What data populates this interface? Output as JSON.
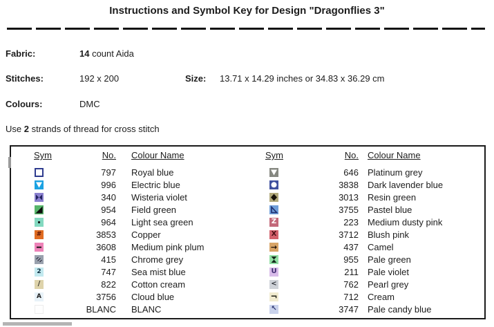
{
  "title": "Instructions and Symbol Key for Design \"Dragonflies 3\"",
  "info": {
    "fabric_label": "Fabric:",
    "fabric_count": "14",
    "fabric_rest": " count Aida",
    "stitches_label": "Stitches:",
    "stitches_value": "192 x 200",
    "size_label": "Size:",
    "size_value": "13.71 x 14.29 inches or 34.83 x 36.29 cm",
    "colours_label": "Colours:",
    "colours_value": "DMC",
    "strands_prefix": "Use ",
    "strands_count": "2",
    "strands_suffix": " strands of thread for cross stitch"
  },
  "key_table": {
    "headers": {
      "sym": "Sym",
      "no": "No.",
      "name": "Colour Name"
    },
    "left_rows": [
      {
        "icon": "bordered-square-icon",
        "bg": "#ffffff",
        "border": "2.5px solid #2e3b8e",
        "no": "797",
        "name": "Royal blue"
      },
      {
        "icon": "down-triangle-icon",
        "bg": "#1ba2e2",
        "shape": "triangle-down",
        "shape_color": "#ffffff",
        "no": "996",
        "name": "Electric blue"
      },
      {
        "icon": "bowtie-icon",
        "bg": "#8a80cf",
        "shape": "bowtie",
        "shape_color": "#23235f",
        "no": "340",
        "name": "Wisteria violet"
      },
      {
        "icon": "lower-right-triangle-icon",
        "bg": "#57b56a",
        "shape": "tri-lower-right",
        "shape_color": "#0d0d0d",
        "no": "954",
        "name": "Field green"
      },
      {
        "icon": "dot-icon",
        "bg": "#83d9c0",
        "shape": "dot",
        "shape_color": "#111111",
        "no": "964",
        "name": "Light sea green"
      },
      {
        "icon": "hash-icon",
        "bg": "#e06c22",
        "glyph": "#",
        "glyph_color": "#5a1508",
        "glyph_size": "9px",
        "no": "3853",
        "name": "Copper"
      },
      {
        "icon": "dash-icon",
        "bg": "#ee82b8",
        "shape": "dash",
        "shape_color": "#111111",
        "no": "3608",
        "name": "Medium pink plum"
      },
      {
        "icon": "diagonal-hatch-icon",
        "bg": "#99a1ad",
        "shape": "hatch",
        "shape_color": "#2e2e3e",
        "no": "415",
        "name": "Chrome grey"
      },
      {
        "icon": "digit-two-icon",
        "bg": "#c2e9ef",
        "glyph": "2",
        "glyph_color": "#0c2c3c",
        "glyph_size": "9px",
        "no": "747",
        "name": "Sea mist blue"
      },
      {
        "icon": "slash-icon",
        "bg": "#ded3ab",
        "glyph": "/",
        "glyph_color": "#3a3a30",
        "glyph_size": "10px",
        "no": "822",
        "name": "Cotton cream"
      },
      {
        "icon": "letter-a-icon",
        "bg": "#e8f2f8",
        "glyph": "A",
        "glyph_color": "#222222",
        "glyph_size": "9px",
        "no": "3756",
        "name": "Cloud blue"
      },
      {
        "icon": "blank-square-icon",
        "bg": "#fefefe",
        "border": "1px solid #ececec",
        "no": "BLANC",
        "name": "BLANC"
      }
    ],
    "right_rows": [
      {
        "icon": "down-triangle-icon",
        "bg": "#868881",
        "shape": "triangle-down",
        "shape_color": "#ffffff",
        "no": "646",
        "name": "Platinum grey"
      },
      {
        "icon": "circle-icon",
        "bg": "#40519f",
        "shape": "circle",
        "shape_color": "#ffffff",
        "no": "3838",
        "name": "Dark lavender blue"
      },
      {
        "icon": "diamond-icon",
        "bg": "#b1a97b",
        "shape": "diamond",
        "shape_color": "#17120a",
        "no": "3013",
        "name": "Resin green"
      },
      {
        "icon": "outline-triangle-icon",
        "bg": "#6f9ed9",
        "shape": "tri-outline",
        "shape_color": "#1c2c6e",
        "no": "3755",
        "name": "Pastel blue"
      },
      {
        "icon": "letter-z-icon",
        "bg": "#c3697a",
        "glyph": "Z",
        "glyph_color": "#ffffff",
        "glyph_size": "10px",
        "no": "223",
        "name": "Medium dusty pink"
      },
      {
        "icon": "letter-x-icon",
        "bg": "#d2606b",
        "glyph": "X",
        "glyph_color": "#4a1016",
        "glyph_size": "10px",
        "no": "3712",
        "name": "Blush pink"
      },
      {
        "icon": "right-arrow-icon",
        "bg": "#d8a466",
        "glyph": "→",
        "glyph_color": "#1c1006",
        "glyph_size": "11px",
        "no": "437",
        "name": "Camel"
      },
      {
        "icon": "hourglass-icon",
        "bg": "#92dfa4",
        "shape": "hourglass",
        "shape_color": "#13271a",
        "no": "955",
        "name": "Pale green"
      },
      {
        "icon": "letter-u-icon",
        "bg": "#d8bbe9",
        "glyph": "U",
        "glyph_color": "#3e2b70",
        "glyph_size": "10px",
        "no": "211",
        "name": "Pale violet"
      },
      {
        "icon": "less-than-icon",
        "bg": "#ced2d8",
        "glyph": "<",
        "glyph_color": "#32363c",
        "glyph_size": "10px",
        "no": "762",
        "name": "Pearl grey"
      },
      {
        "icon": "corner-icon",
        "bg": "#f1ebcf",
        "glyph": "¬",
        "glyph_color": "#1c1c12",
        "glyph_size": "12px",
        "no": "712",
        "name": "Cream"
      },
      {
        "icon": "nw-arrow-icon",
        "bg": "#cad3ec",
        "glyph": "↖",
        "glyph_color": "#2c3672",
        "glyph_size": "10px",
        "no": "3747",
        "name": "Pale candy blue"
      }
    ]
  }
}
